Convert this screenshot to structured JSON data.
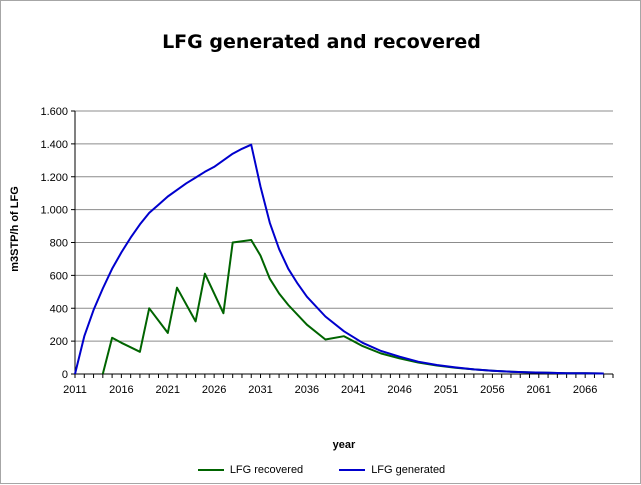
{
  "chart_data": {
    "type": "line",
    "title": "LFG generated and recovered",
    "xlabel": "year",
    "ylabel": "m3STP/h of LFG",
    "xlim": [
      2011,
      2069
    ],
    "ylim": [
      0,
      1600
    ],
    "x_ticks": [
      2011,
      2016,
      2021,
      2026,
      2031,
      2036,
      2041,
      2046,
      2051,
      2056,
      2061,
      2066
    ],
    "y_ticks": [
      {
        "value": 0,
        "label": "0"
      },
      {
        "value": 200,
        "label": "200"
      },
      {
        "value": 400,
        "label": "400"
      },
      {
        "value": 600,
        "label": "600"
      },
      {
        "value": 800,
        "label": "800"
      },
      {
        "value": 1000,
        "label": "1.000"
      },
      {
        "value": 1200,
        "label": "1.200"
      },
      {
        "value": 1400,
        "label": "1.400"
      },
      {
        "value": 1600,
        "label": "1.600"
      }
    ],
    "grid": "horizontal",
    "legend_position": "bottom",
    "series": [
      {
        "name": "LFG recovered",
        "color": "#006400",
        "x": [
          2014,
          2015,
          2016,
          2018,
          2019,
          2021,
          2022,
          2024,
          2025,
          2027,
          2028,
          2030,
          2031,
          2032,
          2033,
          2034,
          2036,
          2038,
          2040,
          2041,
          2042,
          2044,
          2046,
          2048,
          2050,
          2052,
          2054,
          2056,
          2058,
          2060,
          2062,
          2064,
          2066,
          2068
        ],
        "y": [
          0,
          220,
          190,
          135,
          400,
          250,
          525,
          320,
          610,
          370,
          800,
          815,
          720,
          580,
          490,
          420,
          300,
          210,
          230,
          200,
          170,
          125,
          95,
          70,
          52,
          38,
          28,
          20,
          14,
          10,
          7,
          5,
          4,
          3
        ]
      },
      {
        "name": "LFG generated",
        "color": "#0000cd",
        "x": [
          2011,
          2012,
          2013,
          2014,
          2015,
          2016,
          2017,
          2018,
          2019,
          2020,
          2021,
          2022,
          2023,
          2024,
          2025,
          2026,
          2027,
          2028,
          2029,
          2030,
          2031,
          2032,
          2033,
          2034,
          2035,
          2036,
          2038,
          2040,
          2042,
          2044,
          2046,
          2048,
          2050,
          2052,
          2054,
          2056,
          2058,
          2060,
          2062,
          2064,
          2066,
          2068
        ],
        "y": [
          0,
          230,
          390,
          520,
          640,
          740,
          830,
          910,
          980,
          1030,
          1080,
          1120,
          1160,
          1195,
          1230,
          1260,
          1300,
          1340,
          1370,
          1395,
          1140,
          920,
          760,
          640,
          550,
          470,
          350,
          260,
          190,
          140,
          105,
          75,
          55,
          40,
          28,
          20,
          14,
          10,
          7,
          5,
          4,
          3
        ]
      }
    ]
  }
}
